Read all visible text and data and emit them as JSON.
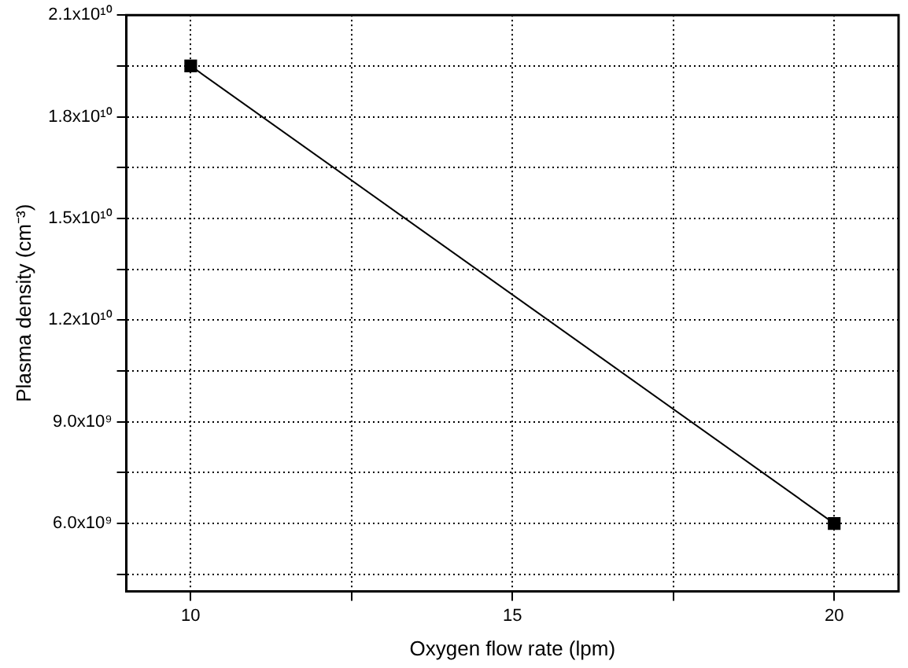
{
  "chart_data": {
    "type": "line",
    "xlabel": "Oxygen flow rate (lpm)",
    "ylabel": "Plasma density (cm⁻³)",
    "x": [
      10,
      20
    ],
    "series": [
      {
        "color": "#000000",
        "values": [
          19500000000,
          6000000000
        ]
      }
    ],
    "xlim": [
      9,
      21
    ],
    "xticks": [
      10,
      {
        "value": 12.5,
        "label": null
      },
      15,
      {
        "value": 17.5,
        "label": null
      },
      20
    ],
    "ylim": [
      4000000000,
      21000000000
    ],
    "yticks": [
      {
        "value": 4500000000,
        "label": null
      },
      {
        "value": 6000000000,
        "label": "6.0x10⁹"
      },
      {
        "value": 7500000000,
        "label": null
      },
      {
        "value": 9000000000,
        "label": "9.0x10⁹"
      },
      {
        "value": 10500000000,
        "label": null
      },
      {
        "value": 12000000000,
        "label": "1.2x10¹⁰"
      },
      {
        "value": 13500000000,
        "label": null
      },
      {
        "value": 15000000000,
        "label": "1.5x10¹⁰"
      },
      {
        "value": 16500000000,
        "label": null
      },
      {
        "value": 18000000000,
        "label": "1.8x10¹⁰"
      },
      {
        "value": 19500000000,
        "label": null
      },
      {
        "value": 21000000000,
        "label": "2.1x10¹⁰"
      }
    ],
    "grid": true,
    "legend": false,
    "marker": "square",
    "line_style": "solid"
  }
}
